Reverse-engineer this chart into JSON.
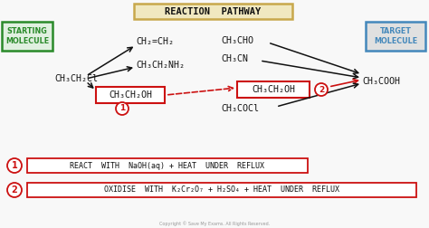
{
  "title": "REACTION  PATHWAY",
  "title_box_color": "#c8a84b",
  "title_box_face": "#f0e8c0",
  "background_color": "#f8f8f8",
  "starting_label": "STARTING\nMOLECULE",
  "target_label": "TARGET\nMOLECULE",
  "starting_molecule": "CH₃CH₂Cl",
  "target_molecule": "CH₃COOH",
  "ch2ch2": "CH₂=CH₂",
  "ch3ch2nh2": "CH₃CH₂NH₂",
  "bottom_left_box": "CH₃CH₂OH",
  "center_box": "CH₃CH₂OH",
  "ch3cho": "CH₃CHO",
  "ch3cn": "CH₃CN",
  "ch3cocl": "CH₃COCl",
  "label1_text": "REACT  WITH  NaOH(aq) + HEAT  UNDER  REFLUX",
  "label2_text": "OXIDISE  WITH  K₂Cr₂O₇ + H₂SO₄ + HEAT  UNDER  REFLUX",
  "arrow_color": "#111111",
  "red_color": "#cc1111",
  "green_color": "#2a8a2a",
  "green_face": "#e0f0e0",
  "blue_color": "#4488bb",
  "blue_face": "#d8e8f0",
  "gray_face": "#e0e0e0",
  "white": "#ffffff"
}
